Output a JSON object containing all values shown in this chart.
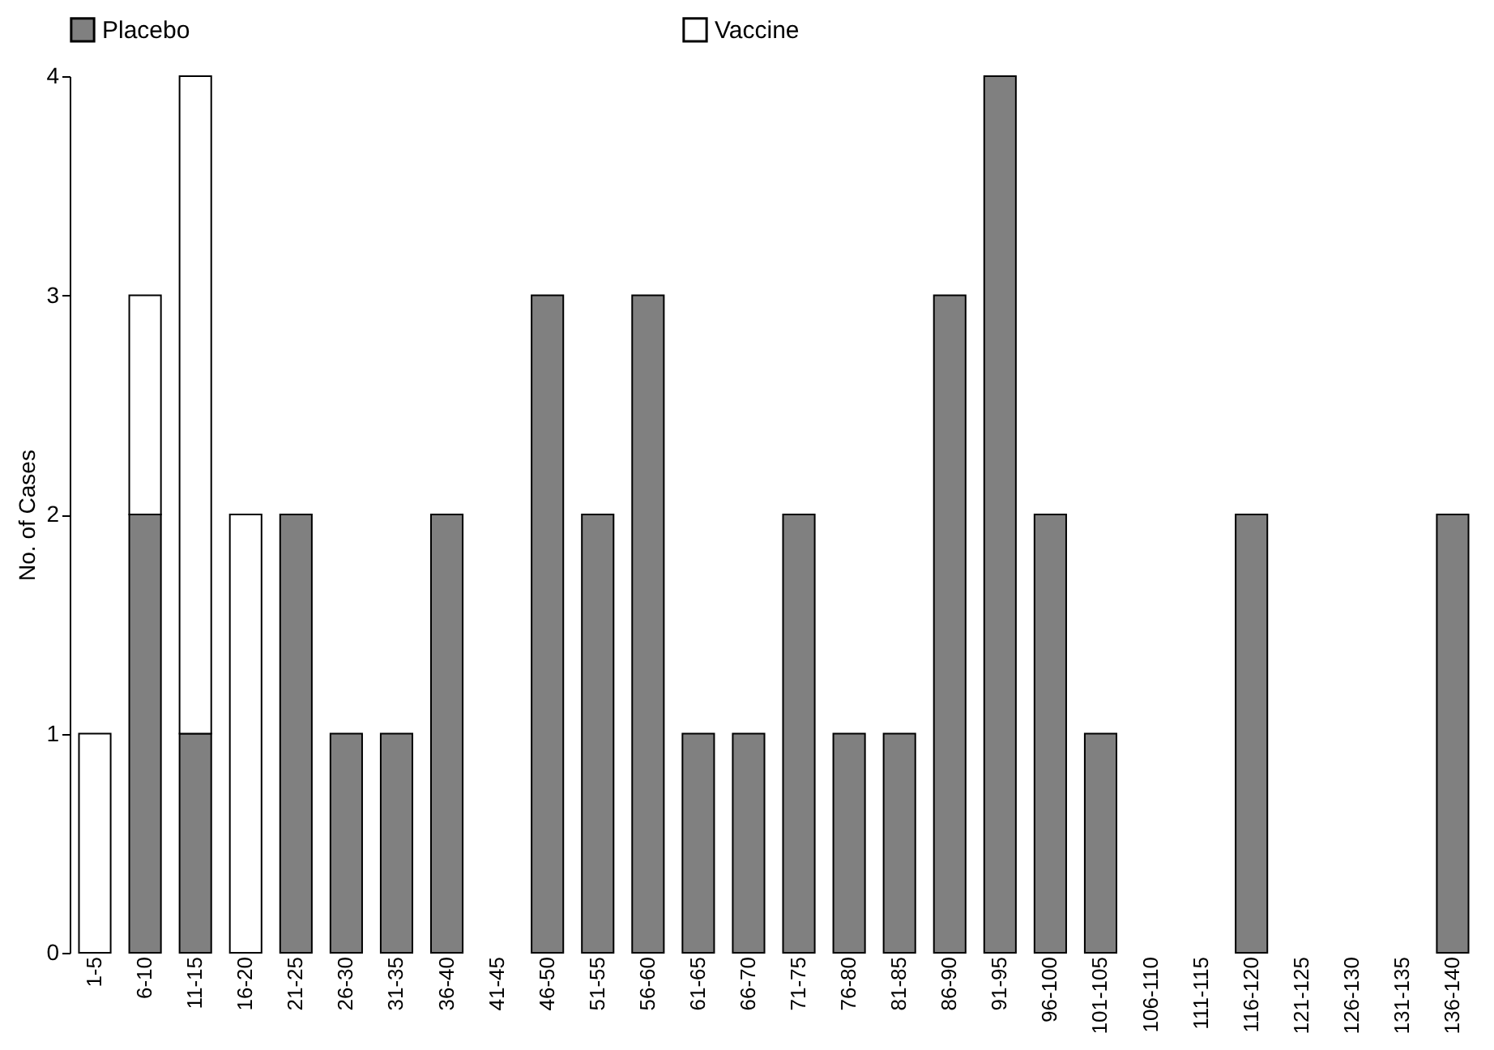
{
  "chart_data": {
    "type": "bar",
    "ylabel": "No. of Cases",
    "stacked": true,
    "legend": "top",
    "grid": false,
    "categories": [
      "1-5",
      "6-10",
      "11-15",
      "16-20",
      "21-25",
      "26-30",
      "31-35",
      "36-40",
      "41-45",
      "46-50",
      "51-55",
      "56-60",
      "61-65",
      "66-70",
      "71-75",
      "76-80",
      "81-85",
      "86-90",
      "91-95",
      "96-100",
      "101-105",
      "106-110",
      "111-115",
      "116-120",
      "121-125",
      "126-130",
      "131-135",
      "136-140"
    ],
    "series": [
      {
        "name": "Placebo",
        "color": "#808080",
        "values": [
          0,
          2,
          1,
          0,
          2,
          1,
          1,
          2,
          0,
          3,
          2,
          3,
          1,
          1,
          2,
          1,
          1,
          3,
          4,
          2,
          1,
          0,
          0,
          2,
          0,
          0,
          0,
          2
        ]
      },
      {
        "name": "Vaccine",
        "color": "#ffffff",
        "values": [
          1,
          1,
          3,
          2,
          0,
          0,
          0,
          0,
          0,
          0,
          0,
          0,
          0,
          0,
          0,
          0,
          0,
          0,
          0,
          0,
          0,
          0,
          0,
          0,
          0,
          0,
          0,
          0
        ]
      }
    ],
    "ylim": [
      0,
      4
    ],
    "yticks": [
      0,
      1,
      2,
      3,
      4
    ]
  }
}
